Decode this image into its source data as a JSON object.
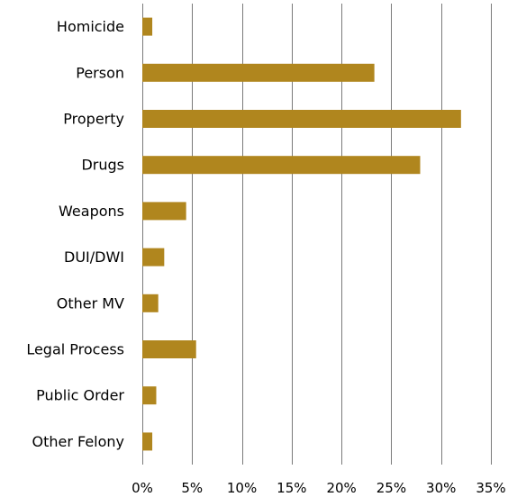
{
  "chart_data": {
    "type": "bar",
    "orientation": "horizontal",
    "categories": [
      "Homicide",
      "Person",
      "Property",
      "Drugs",
      "Weapons",
      "DUI/DWI",
      "Other MV",
      "Legal Process",
      "Public Order",
      "Other Felony"
    ],
    "values": [
      1.0,
      23.3,
      32.0,
      27.9,
      4.4,
      2.2,
      1.6,
      5.4,
      1.4,
      1.0
    ],
    "xlim": [
      0,
      35
    ],
    "x_ticks": [
      0,
      5,
      10,
      15,
      20,
      25,
      30,
      35
    ],
    "x_tick_labels": [
      "0%",
      "5%",
      "10%",
      "15%",
      "20%",
      "25%",
      "30%",
      "35%"
    ],
    "grid": "vertical",
    "bar_color": "#B0861E",
    "grid_color": "#7a7a7a",
    "legend": "none",
    "title": "",
    "xlabel": "",
    "ylabel": ""
  }
}
